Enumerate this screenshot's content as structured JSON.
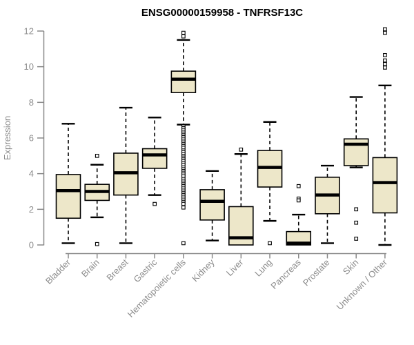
{
  "title": "ENSG00000159958 - TNFRSF13C",
  "chart_data": {
    "type": "boxplot",
    "title": "ENSG00000159958 - TNFRSF13C",
    "xlabel": "",
    "ylabel": "Expression",
    "ylim": [
      0,
      12
    ],
    "yticks": [
      0,
      2,
      4,
      6,
      8,
      10,
      12
    ],
    "grid": false,
    "legend": "none",
    "colors": {
      "box_fill": "#ede7c9",
      "box_stroke": "#000000",
      "median": "#000000",
      "axis": "#888888",
      "tick_label": "#8c8c8c",
      "title": "#000000",
      "background": "#ffffff"
    },
    "categories": [
      "Bladder",
      "Brain",
      "Breast",
      "Gastric",
      "Hematopoietic cells",
      "Kidney",
      "Liver",
      "Lung",
      "Pancreas",
      "Prostate",
      "Skin",
      "Unknown / Other"
    ],
    "series": [
      {
        "name": "Bladder",
        "low": 0.1,
        "q1": 1.5,
        "median": 3.05,
        "q3": 3.95,
        "high": 6.8,
        "outliers": []
      },
      {
        "name": "Brain",
        "low": 1.55,
        "q1": 2.5,
        "median": 3.0,
        "q3": 3.4,
        "high": 4.5,
        "outliers": [
          5.0,
          0.05
        ]
      },
      {
        "name": "Breast",
        "low": 0.1,
        "q1": 2.8,
        "median": 4.05,
        "q3": 5.15,
        "high": 7.7,
        "outliers": []
      },
      {
        "name": "Gastric",
        "low": 2.8,
        "q1": 4.3,
        "median": 5.05,
        "q3": 5.4,
        "high": 7.15,
        "outliers": [
          2.3
        ]
      },
      {
        "name": "Hematopoietic cells",
        "low": 6.75,
        "q1": 8.55,
        "median": 9.3,
        "q3": 9.75,
        "high": 11.5,
        "outliers": [
          11.9,
          11.7,
          6.65,
          6.55,
          6.45,
          6.35,
          6.25,
          6.15,
          6.05,
          5.95,
          5.85,
          5.75,
          5.65,
          5.55,
          5.45,
          5.3,
          5.2,
          5.1,
          5.0,
          4.9,
          4.8,
          4.7,
          4.6,
          4.5,
          4.35,
          4.25,
          4.15,
          4.05,
          3.95,
          3.85,
          3.7,
          3.6,
          3.5,
          3.4,
          3.3,
          3.2,
          3.1,
          3.0,
          2.9,
          2.8,
          2.7,
          2.6,
          2.5,
          2.4,
          2.3,
          2.1,
          0.1
        ]
      },
      {
        "name": "Kidney",
        "low": 0.25,
        "q1": 1.4,
        "median": 2.45,
        "q3": 3.1,
        "high": 4.15,
        "outliers": []
      },
      {
        "name": "Liver",
        "low": 0.0,
        "q1": 0.0,
        "median": 0.4,
        "q3": 2.15,
        "high": 5.1,
        "outliers": [
          5.35
        ]
      },
      {
        "name": "Lung",
        "low": 1.35,
        "q1": 3.25,
        "median": 4.35,
        "q3": 5.3,
        "high": 6.9,
        "outliers": [
          0.1
        ]
      },
      {
        "name": "Pancreas",
        "low": 0.0,
        "q1": 0.0,
        "median": 0.1,
        "q3": 0.75,
        "high": 1.7,
        "outliers": [
          3.3,
          2.6,
          2.5
        ]
      },
      {
        "name": "Prostate",
        "low": 0.1,
        "q1": 1.75,
        "median": 2.8,
        "q3": 3.8,
        "high": 4.45,
        "outliers": []
      },
      {
        "name": "Skin",
        "low": 4.35,
        "q1": 4.45,
        "median": 5.65,
        "q3": 5.95,
        "high": 8.3,
        "outliers": [
          2.0,
          1.25,
          0.35
        ]
      },
      {
        "name": "Unknown / Other",
        "low": 0.0,
        "q1": 1.8,
        "median": 3.5,
        "q3": 4.9,
        "high": 8.95,
        "outliers": [
          9.95,
          10.15,
          10.35,
          10.65,
          11.9,
          12.1
        ]
      }
    ]
  }
}
